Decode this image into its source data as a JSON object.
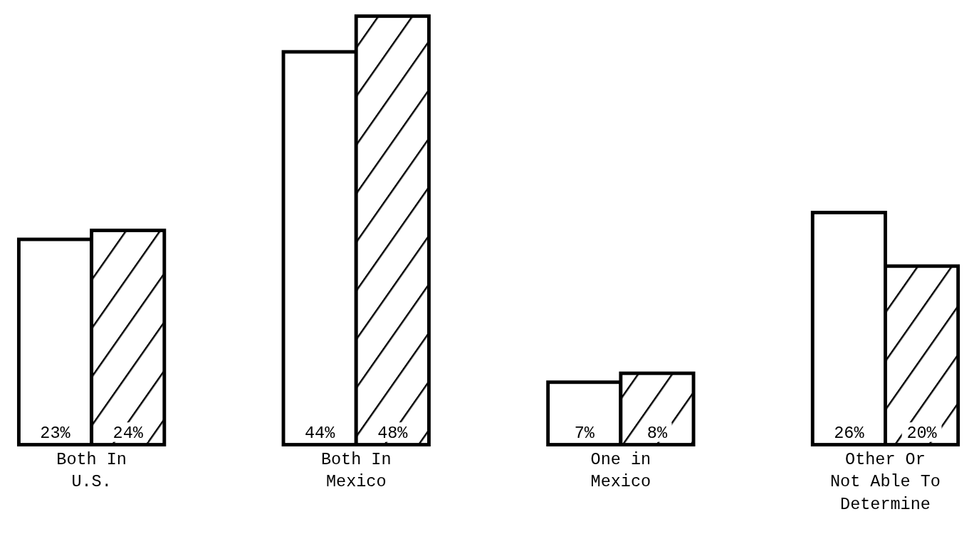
{
  "chart_data": {
    "type": "bar",
    "categories": [
      "Both In U.S.",
      "Both In Mexico",
      "One in Mexico",
      "Other Or Not Able To Determine"
    ],
    "series": [
      {
        "color": "#ffffff",
        "values": [
          23,
          44,
          7,
          26
        ],
        "value_labels": [
          "23%",
          "44%",
          "7%",
          "26%"
        ]
      },
      {
        "color": "#000000",
        "values": [
          24,
          48,
          8,
          20
        ],
        "value_labels": [
          "24%",
          "48%",
          "8%",
          "20%"
        ]
      }
    ]
  }
}
